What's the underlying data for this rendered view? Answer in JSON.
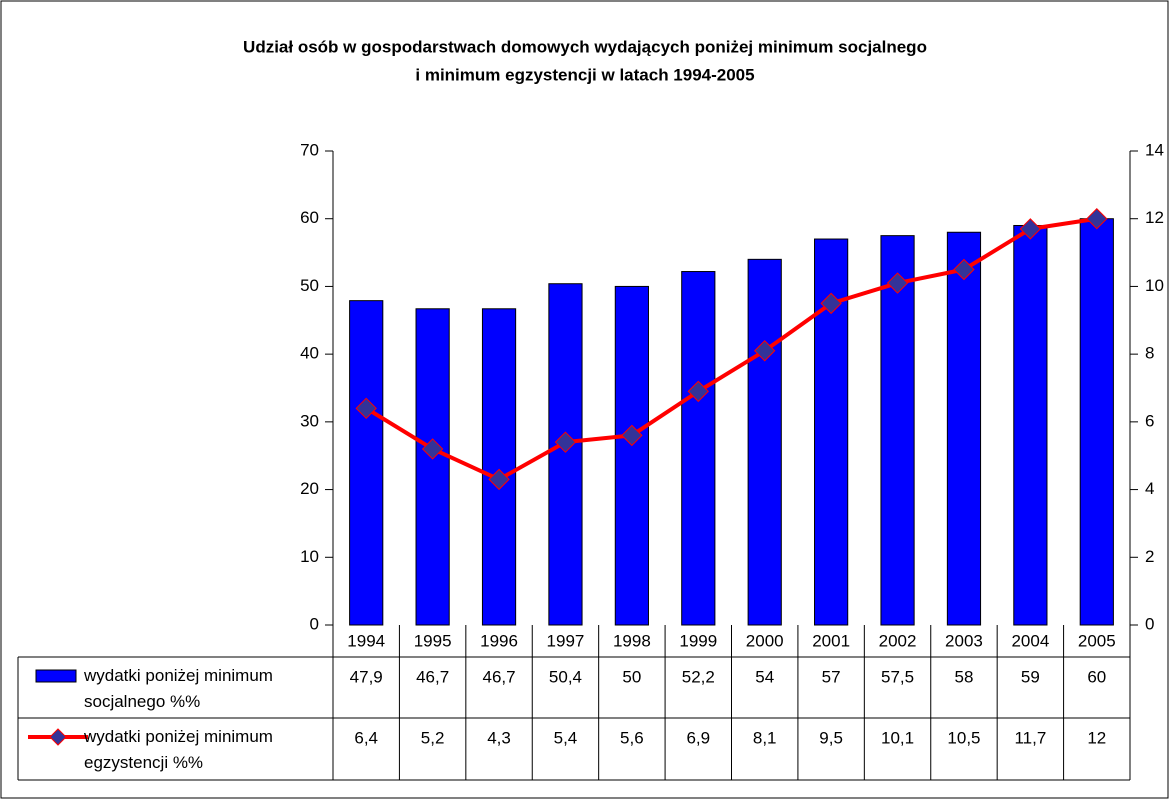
{
  "chart_data": {
    "type": "bar",
    "title": [
      "Udział osób w gospodarstwach domowych wydających poniżej minimum socjalnego",
      "i minimum egzystencji w latach 1994-2005"
    ],
    "categories": [
      "1994",
      "1995",
      "1996",
      "1997",
      "1998",
      "1999",
      "2000",
      "2001",
      "2002",
      "2003",
      "2004",
      "2005"
    ],
    "series": [
      {
        "name": "wydatki poniżej minimum socjalnego %%",
        "type": "bar",
        "color": "#0000ff",
        "values": [
          47.9,
          46.7,
          46.7,
          50.4,
          50,
          52.2,
          54,
          57,
          57.5,
          58,
          59,
          60
        ],
        "value_labels": [
          "47,9",
          "46,7",
          "46,7",
          "50,4",
          "50",
          "52,2",
          "54",
          "57",
          "57,5",
          "58",
          "59",
          "60"
        ]
      },
      {
        "name": "wydatki poniżej minimum egzystencji %%",
        "type": "line",
        "axis": "y2",
        "color": "#ff0000",
        "marker_color": "#333399",
        "values": [
          6.4,
          5.2,
          4.3,
          5.4,
          5.6,
          6.9,
          8.1,
          9.5,
          10.1,
          10.5,
          11.7,
          12
        ],
        "value_labels": [
          "6,4",
          "5,2",
          "4,3",
          "5,4",
          "5,6",
          "6,9",
          "8,1",
          "9,5",
          "10,1",
          "10,5",
          "11,7",
          "12"
        ]
      }
    ],
    "ylim": [
      0,
      70
    ],
    "yticks": [
      0,
      10,
      20,
      30,
      40,
      50,
      60,
      70
    ],
    "y2lim": [
      0,
      14
    ],
    "y2ticks": [
      0,
      2,
      4,
      6,
      8,
      10,
      12,
      14
    ]
  }
}
